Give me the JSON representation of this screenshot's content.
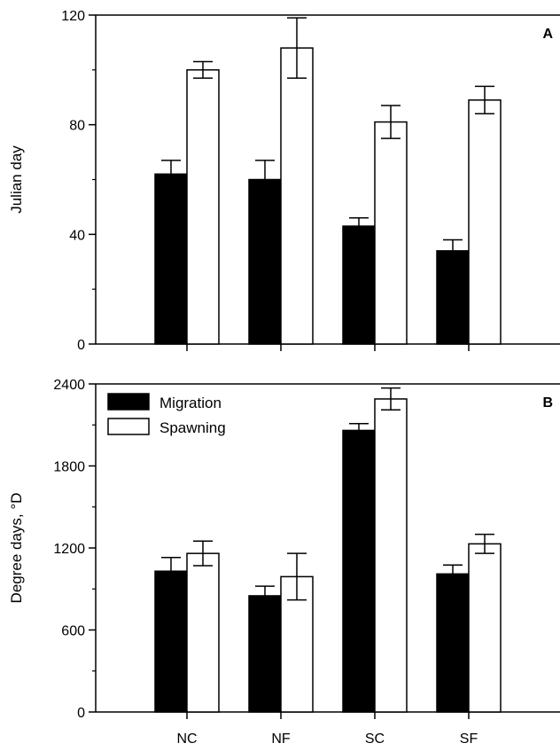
{
  "chart_data": [
    {
      "type": "bar",
      "panel_label": "A",
      "categories": [
        "NC",
        "NF",
        "SC",
        "SF"
      ],
      "series": [
        {
          "name": "Migration",
          "color": "#000000",
          "values": [
            62,
            60,
            43,
            34
          ],
          "errors": [
            5,
            7,
            3,
            4
          ]
        },
        {
          "name": "Spawning",
          "color": "#ffffff",
          "values": [
            100,
            108,
            81,
            89
          ],
          "errors": [
            3,
            11,
            6,
            5
          ]
        }
      ],
      "xlabel": "",
      "ylabel": "Julian day",
      "ylim": [
        0,
        120
      ],
      "yticks": [
        0,
        40,
        80,
        120
      ],
      "ytick_labels": [
        "0",
        "40",
        "80",
        "120"
      ],
      "grid": false
    },
    {
      "type": "bar",
      "panel_label": "B",
      "categories": [
        "NC",
        "NF",
        "SC",
        "SF"
      ],
      "series": [
        {
          "name": "Migration",
          "color": "#000000",
          "values": [
            1030,
            850,
            2060,
            1010
          ],
          "errors": [
            100,
            70,
            50,
            65
          ]
        },
        {
          "name": "Spawning",
          "color": "#ffffff",
          "values": [
            1160,
            990,
            2290,
            1230
          ],
          "errors": [
            90,
            170,
            80,
            70
          ]
        }
      ],
      "xlabel": "",
      "ylabel": "Degree days, °D",
      "ylim": [
        0,
        2400
      ],
      "yticks": [
        0,
        600,
        1200,
        1800,
        2400
      ],
      "ytick_labels": [
        "0",
        "600",
        "1200",
        "1800",
        "2400"
      ],
      "legend": {
        "placement": "top-left",
        "entries": [
          "Migration",
          "Spawning"
        ]
      },
      "grid": false
    }
  ]
}
